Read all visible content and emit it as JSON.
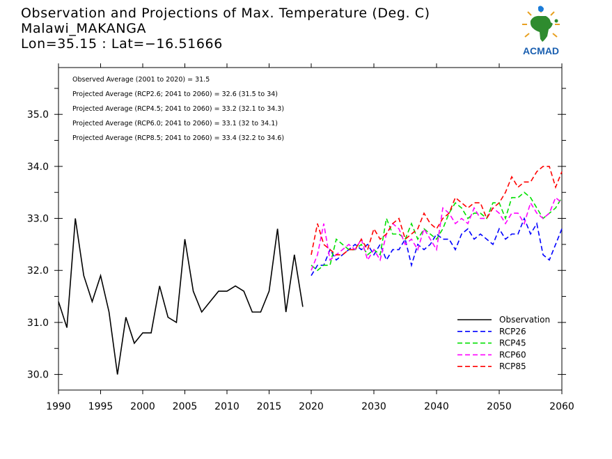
{
  "header": {
    "line1": "Observation and Projections of Max. Temperature (Deg. C)",
    "line2": "Malawi_MAKANGA",
    "line3": "Lon=35.15 : Lat=−16.51666"
  },
  "logo": {
    "text": "ACMAD",
    "icon": "acmad-africa-logo-icon"
  },
  "annotations": [
    "Observed Average (2001 to 2020) = 31.5",
    "Projected Average (RCP2.6; 2041 to 2060) = 32.6 (31.5 to 34)",
    "Projected Average (RCP4.5; 2041 to 2060) = 33.2 (32.1 to 34.3)",
    "Projected Average (RCP6.0; 2041 to 2060) = 33.1 (32 to 34.1)",
    "Projected Average (RCP8.5; 2041 to 2060) = 33.4 (32.2 to 34.6)"
  ],
  "chart_data": {
    "type": "line",
    "title": "Observation and Projections of Max. Temperature (Deg. C)",
    "xlim": [
      1990,
      2060
    ],
    "ylim": [
      29.7,
      35.9
    ],
    "x_ticks": [
      {
        "label": "1990",
        "value": 1990
      },
      {
        "label": "1995",
        "value": 1995
      },
      {
        "label": "2000",
        "value": 2000
      },
      {
        "label": "2005",
        "value": 2005
      },
      {
        "label": "2010",
        "value": 2010
      },
      {
        "label": "2015",
        "value": 2015
      },
      {
        "label": "2020",
        "value": 2020
      },
      {
        "label": "2030",
        "value": 2030
      },
      {
        "label": "2040",
        "value": 2040
      },
      {
        "label": "2050",
        "value": 2050
      },
      {
        "label": "2060",
        "value": 2060
      }
    ],
    "y_ticks": [
      {
        "label": "30.0",
        "value": 30.0
      },
      {
        "label": "31.0",
        "value": 31.0
      },
      {
        "label": "32.0",
        "value": 32.0
      },
      {
        "label": "33.0",
        "value": 33.0
      },
      {
        "label": "34.0",
        "value": 34.0
      },
      {
        "label": "35.0",
        "value": 35.0
      }
    ],
    "legend_position": "bottom-right",
    "series": [
      {
        "name": "Observation",
        "color": "#000000",
        "dashed": false,
        "x": [
          1990,
          1991,
          1992,
          1993,
          1994,
          1995,
          1996,
          1997,
          1998,
          1999,
          2000,
          2001,
          2002,
          2003,
          2004,
          2005,
          2006,
          2007,
          2008,
          2009,
          2010,
          2011,
          2012,
          2013,
          2014,
          2015,
          2016,
          2017,
          2018,
          2019
        ],
        "y": [
          31.4,
          30.9,
          33.0,
          31.9,
          31.4,
          31.9,
          31.2,
          30.0,
          31.1,
          30.6,
          30.8,
          30.8,
          31.7,
          31.1,
          31.0,
          32.6,
          31.6,
          31.2,
          31.4,
          31.6,
          31.6,
          31.7,
          31.6,
          31.2,
          31.2,
          31.6,
          32.8,
          31.2,
          32.3,
          31.3
        ]
      },
      {
        "name": "RCP26",
        "color": "#0000ff",
        "dashed": true,
        "x": [
          2020,
          2021,
          2022,
          2023,
          2024,
          2025,
          2026,
          2027,
          2028,
          2029,
          2030,
          2031,
          2032,
          2033,
          2034,
          2035,
          2036,
          2037,
          2038,
          2039,
          2040,
          2041,
          2042,
          2043,
          2044,
          2045,
          2046,
          2047,
          2048,
          2049,
          2050,
          2051,
          2052,
          2053,
          2054,
          2055,
          2056,
          2057,
          2058,
          2059,
          2060
        ],
        "y": [
          31.9,
          32.1,
          32.1,
          32.4,
          32.2,
          32.3,
          32.4,
          32.5,
          32.4,
          32.5,
          32.3,
          32.5,
          32.2,
          32.4,
          32.4,
          32.6,
          32.1,
          32.5,
          32.4,
          32.5,
          32.7,
          32.6,
          32.6,
          32.4,
          32.7,
          32.8,
          32.6,
          32.7,
          32.6,
          32.5,
          32.8,
          32.6,
          32.7,
          32.7,
          33.0,
          32.7,
          32.9,
          32.3,
          32.2,
          32.5,
          32.8
        ]
      },
      {
        "name": "RCP45",
        "color": "#00e000",
        "dashed": true,
        "x": [
          2020,
          2021,
          2022,
          2023,
          2024,
          2025,
          2026,
          2027,
          2028,
          2029,
          2030,
          2031,
          2032,
          2033,
          2034,
          2035,
          2036,
          2037,
          2038,
          2039,
          2040,
          2041,
          2042,
          2043,
          2044,
          2045,
          2046,
          2047,
          2048,
          2049,
          2050,
          2051,
          2052,
          2053,
          2054,
          2055,
          2056,
          2057,
          2058,
          2059,
          2060
        ],
        "y": [
          32.1,
          32.0,
          32.1,
          32.1,
          32.6,
          32.5,
          32.4,
          32.4,
          32.5,
          32.3,
          32.4,
          32.3,
          33.0,
          32.7,
          32.7,
          32.6,
          32.9,
          32.6,
          32.8,
          32.7,
          32.6,
          32.8,
          33.1,
          33.3,
          33.2,
          33.0,
          33.1,
          33.1,
          33.0,
          33.3,
          33.3,
          33.0,
          33.4,
          33.4,
          33.5,
          33.4,
          33.2,
          33.0,
          33.1,
          33.2,
          33.4
        ]
      },
      {
        "name": "RCP60",
        "color": "#ff00ff",
        "dashed": true,
        "x": [
          2020,
          2021,
          2022,
          2023,
          2024,
          2025,
          2026,
          2027,
          2028,
          2029,
          2030,
          2031,
          2032,
          2033,
          2034,
          2035,
          2036,
          2037,
          2038,
          2039,
          2040,
          2041,
          2042,
          2043,
          2044,
          2045,
          2046,
          2047,
          2048,
          2049,
          2050,
          2051,
          2052,
          2053,
          2054,
          2055,
          2056,
          2057,
          2058,
          2059,
          2060
        ],
        "y": [
          32.0,
          32.3,
          32.9,
          32.2,
          32.3,
          32.4,
          32.5,
          32.4,
          32.6,
          32.2,
          32.4,
          32.2,
          32.7,
          32.9,
          32.8,
          32.5,
          32.6,
          32.4,
          32.8,
          32.6,
          32.4,
          33.2,
          33.1,
          32.9,
          33.0,
          32.9,
          33.2,
          33.0,
          33.0,
          33.2,
          33.1,
          32.9,
          33.1,
          33.1,
          32.9,
          33.3,
          33.1,
          33.0,
          33.1,
          33.4,
          33.3
        ]
      },
      {
        "name": "RCP85",
        "color": "#ff0000",
        "dashed": true,
        "x": [
          2020,
          2021,
          2022,
          2023,
          2024,
          2025,
          2026,
          2027,
          2028,
          2029,
          2030,
          2031,
          2032,
          2033,
          2034,
          2035,
          2036,
          2037,
          2038,
          2039,
          2040,
          2041,
          2042,
          2043,
          2044,
          2045,
          2046,
          2047,
          2048,
          2049,
          2050,
          2051,
          2052,
          2053,
          2054,
          2055,
          2056,
          2057,
          2058,
          2059,
          2060
        ],
        "y": [
          32.3,
          32.9,
          32.5,
          32.4,
          32.3,
          32.3,
          32.4,
          32.4,
          32.6,
          32.4,
          32.8,
          32.6,
          32.7,
          32.9,
          33.0,
          32.6,
          32.7,
          32.8,
          33.1,
          32.9,
          32.8,
          33.0,
          33.1,
          33.4,
          33.3,
          33.2,
          33.3,
          33.3,
          33.0,
          33.2,
          33.3,
          33.5,
          33.8,
          33.6,
          33.7,
          33.7,
          33.9,
          34.0,
          34.0,
          33.6,
          33.9
        ]
      }
    ]
  }
}
